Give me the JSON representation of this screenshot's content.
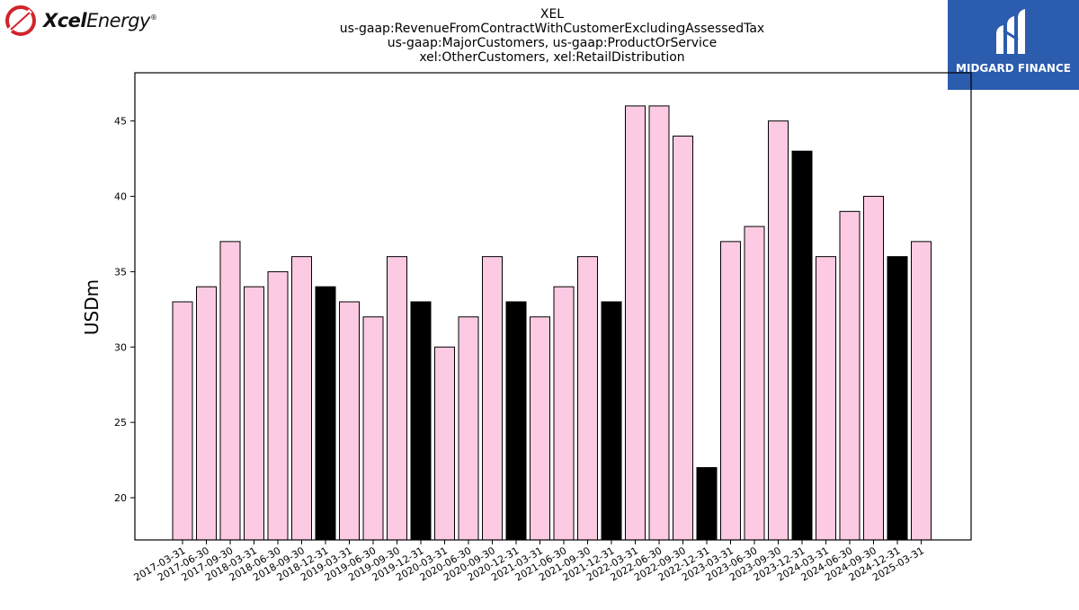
{
  "logos": {
    "left_brand_bold": "Xcel",
    "left_brand_regular": "Energy",
    "left_brand_mark": "®",
    "right_brand": "MIDGARD FINANCE"
  },
  "colors": {
    "bar_default": "#fccae2",
    "bar_highlight": "#000000",
    "bar_edge": "#000000",
    "logo_right_bg": "#2b5cad",
    "logo_left_swirl": "#d2232a"
  },
  "chart_data": {
    "type": "bar",
    "title_lines": [
      "XEL",
      "us-gaap:RevenueFromContractWithCustomerExcludingAssessedTax",
      "us-gaap:MajorCustomers, us-gaap:ProductOrService",
      "xel:OtherCustomers, xel:RetailDistribution"
    ],
    "xlabel": "",
    "ylabel": "USDm",
    "ylim": [
      17.2,
      48.2
    ],
    "yticks": [
      20,
      25,
      30,
      35,
      40,
      45
    ],
    "grid": false,
    "categories": [
      "2017-03-31",
      "2017-06-30",
      "2017-09-30",
      "2018-03-31",
      "2018-06-30",
      "2018-09-30",
      "2018-12-31",
      "2019-03-31",
      "2019-06-30",
      "2019-09-30",
      "2019-12-31",
      "2020-03-31",
      "2020-06-30",
      "2020-09-30",
      "2020-12-31",
      "2021-03-31",
      "2021-06-30",
      "2021-09-30",
      "2021-12-31",
      "2022-03-31",
      "2022-06-30",
      "2022-09-30",
      "2022-12-31",
      "2023-03-31",
      "2023-06-30",
      "2023-09-30",
      "2023-12-31",
      "2024-03-31",
      "2024-06-30",
      "2024-09-30",
      "2024-12-31",
      "2025-03-31"
    ],
    "values": [
      33,
      34,
      37,
      34,
      35,
      36,
      34,
      33,
      32,
      36,
      33,
      30,
      32,
      36,
      33,
      32,
      34,
      36,
      33,
      46,
      46,
      44,
      22,
      37,
      38,
      45,
      43,
      36,
      39,
      40,
      36,
      37
    ],
    "highlight": [
      false,
      false,
      false,
      false,
      false,
      false,
      true,
      false,
      false,
      false,
      true,
      false,
      false,
      false,
      true,
      false,
      false,
      false,
      true,
      false,
      false,
      false,
      true,
      false,
      false,
      false,
      true,
      false,
      false,
      false,
      true,
      false
    ]
  }
}
